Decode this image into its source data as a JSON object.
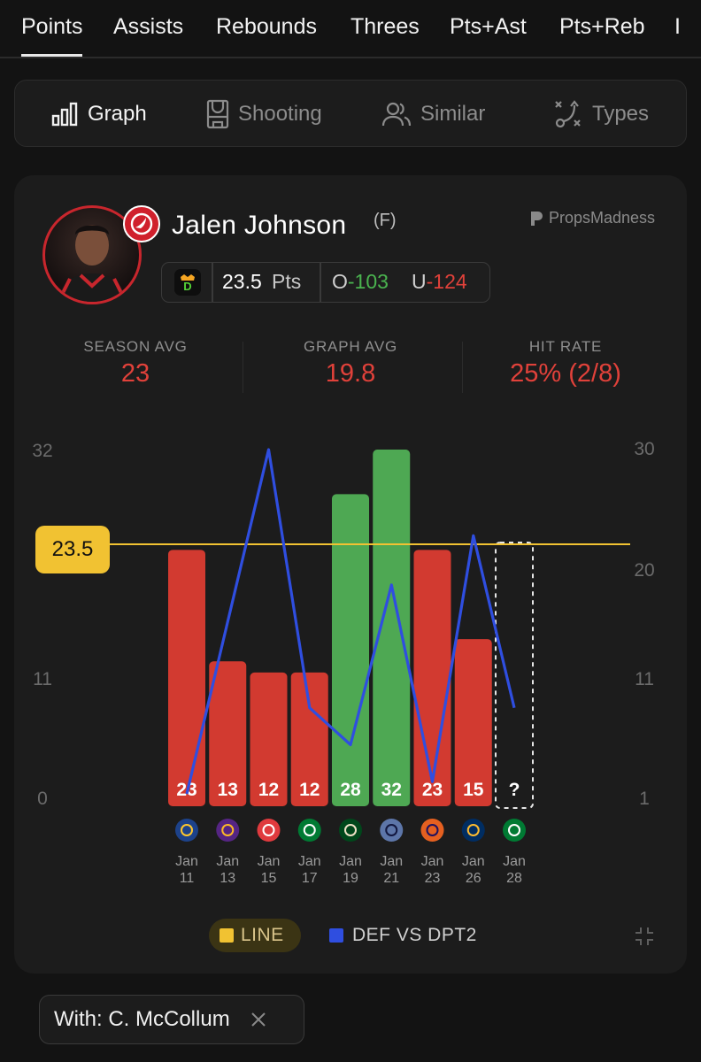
{
  "stat_tabs": [
    {
      "label": "Points",
      "active": true
    },
    {
      "label": "Assists",
      "active": false
    },
    {
      "label": "Rebounds",
      "active": false
    },
    {
      "label": "Threes",
      "active": false
    },
    {
      "label": "Pts+Ast",
      "active": false
    },
    {
      "label": "Pts+Reb",
      "active": false
    },
    {
      "label": "I",
      "active": false
    }
  ],
  "view_tabs": [
    {
      "label": "Graph",
      "icon": "bar-chart-icon",
      "active": true
    },
    {
      "label": "Shooting",
      "icon": "court-icon",
      "active": false
    },
    {
      "label": "Similar",
      "icon": "users-icon",
      "active": false
    },
    {
      "label": "Types",
      "icon": "play-diagram-icon",
      "active": false
    }
  ],
  "player": {
    "name": "Jalen Johnson",
    "position": "(F)",
    "team_logo": "hawks-logo",
    "brand": "PropsMadness"
  },
  "line": {
    "book_logo": "draftkings-logo",
    "value": "23.5",
    "unit": "Pts",
    "over_label": "O",
    "over_odds": "-103",
    "under_label": "U",
    "under_odds": "-124"
  },
  "stats": [
    {
      "label": "SEASON AVG",
      "value": "23"
    },
    {
      "label": "GRAPH AVG",
      "value": "19.8"
    },
    {
      "label": "HIT RATE",
      "value": "25% (2/8)"
    }
  ],
  "chart_data": {
    "type": "bar",
    "categories": [
      "Jan 11",
      "Jan 13",
      "Jan 15",
      "Jan 17",
      "Jan 19",
      "Jan 21",
      "Jan 23",
      "Jan 26",
      "Jan 28"
    ],
    "series": [
      {
        "name": "",
        "values": [
          23,
          13,
          12,
          12,
          28,
          32,
          23,
          15,
          null
        ],
        "labels": [
          "23",
          "13",
          "12",
          "12",
          "28",
          "32",
          "23",
          "15",
          "?"
        ]
      },
      {
        "name": "DEF VS DPT2",
        "type": "line",
        "axis": "right",
        "values": [
          2,
          null,
          30,
          9,
          6,
          null,
          3,
          23,
          9
        ]
      }
    ],
    "opponents": [
      "warriors-logo",
      "lakers-logo",
      "blazers-logo",
      "celtics-logo",
      "bucks-logo",
      "grizzlies-logo",
      "suns-logo",
      "pacers-logo",
      "celtics-logo"
    ],
    "line_value": 23.5,
    "line_label": "23.5",
    "left_axis": {
      "ticks": [
        "32",
        "",
        "11",
        "0"
      ],
      "range": [
        0,
        32
      ]
    },
    "right_axis": {
      "ticks": [
        "30",
        "20",
        "11",
        "1"
      ],
      "range": [
        1,
        30
      ]
    },
    "colors": {
      "hit": "#4ea853",
      "miss": "#d23a30",
      "line": "#f1c232",
      "def": "#2f4ee0"
    },
    "legend": [
      {
        "label": "LINE",
        "color": "#f1c232"
      },
      {
        "label": "DEF VS DPT2",
        "color": "#2f4ee0"
      }
    ],
    "legend_position": "bottom"
  },
  "filter": {
    "label": "With: C. McCollum"
  }
}
